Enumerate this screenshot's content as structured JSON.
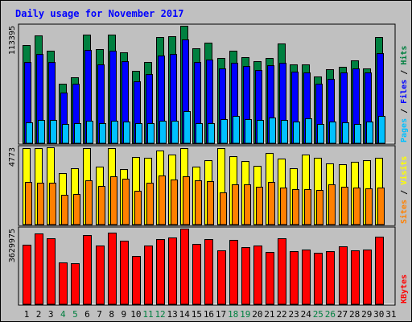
{
  "chart_data": {
    "type": "bar",
    "title": "Daily usage for November 2017",
    "categories": [
      "1",
      "2",
      "3",
      "4",
      "5",
      "6",
      "7",
      "8",
      "9",
      "10",
      "11",
      "12",
      "13",
      "14",
      "15",
      "16",
      "17",
      "18",
      "19",
      "20",
      "21",
      "22",
      "23",
      "24",
      "25",
      "26",
      "27",
      "28",
      "29",
      "30",
      "31"
    ],
    "weekend_days": [
      "4",
      "5",
      "11",
      "12",
      "18",
      "19",
      "25",
      "26"
    ],
    "colors": {
      "title": "#0000ff",
      "background": "#c0c0c0",
      "plot": "#c0c0c0",
      "hits": "#008040",
      "files": "#0000ff",
      "pages": "#00c0ff",
      "visits": "#ffff00",
      "sites": "#ff8000",
      "kbytes": "#ff0000",
      "weekday_label": "#000000",
      "weekend_label": "#008040"
    },
    "panels": [
      {
        "id": "hits-panel",
        "ymax_label": "113395",
        "ymax": 113395,
        "legend": [
          {
            "text": "Pages",
            "color": "#00c0ff"
          },
          {
            "text": " / ",
            "color": "#000000"
          },
          {
            "text": "Files",
            "color": "#0000ff"
          },
          {
            "text": " / ",
            "color": "#000000"
          },
          {
            "text": "Hits",
            "color": "#008040"
          }
        ],
        "series": [
          {
            "name": "Hits",
            "values": [
              94400,
              104000,
              89200,
              57700,
              64000,
              104800,
              90500,
              104800,
              87600,
              69600,
              78500,
              102800,
              103400,
              113395,
              91800,
              97100,
              82600,
              89600,
              83200,
              79300,
              82000,
              96500,
              75800,
              75900,
              64500,
              71500,
              74000,
              80300,
              72300,
              102500,
              0
            ]
          },
          {
            "name": "Files",
            "values": [
              78200,
              86400,
              78100,
              49300,
              57100,
              90200,
              76300,
              89200,
              79000,
              59900,
              66600,
              84300,
              86500,
              100200,
              78600,
              80900,
              72000,
              77700,
              74400,
              70400,
              75300,
              78000,
              69300,
              68000,
              57200,
              62300,
              68200,
              72100,
              68400,
              86700,
              0
            ]
          },
          {
            "name": "Pages",
            "values": [
              20000,
              22500,
              22900,
              18800,
              19200,
              21800,
              19300,
              21700,
              21000,
              19400,
              19300,
              21400,
              21600,
              30700,
              19700,
              19400,
              23100,
              26300,
              23300,
              22400,
              24700,
              22400,
              20900,
              24300,
              19000,
              20700,
              20500,
              18500,
              20600,
              26500,
              0
            ]
          }
        ]
      },
      {
        "id": "visits-panel",
        "ymax_label": "4773",
        "ymax": 4773,
        "legend": [
          {
            "text": "Sites",
            "color": "#ff8000"
          },
          {
            "text": " / ",
            "color": "#000000"
          },
          {
            "text": "Visits",
            "color": "#ffff00"
          }
        ],
        "series": [
          {
            "name": "Visits",
            "values": [
              4740,
              4720,
              4760,
              3180,
              3480,
              4720,
              3570,
              4740,
              3410,
              4180,
              4140,
              4560,
              4310,
              4730,
              3600,
              3970,
              4730,
              4250,
              3930,
              3620,
              4410,
              4080,
              3480,
              4350,
              4120,
              3780,
              3730,
              3880,
              3980,
              4150,
              0
            ]
          },
          {
            "name": "Sites",
            "values": [
              2620,
              2590,
              2610,
              1830,
              1890,
              2720,
              2380,
              2980,
              2820,
              2080,
              2600,
              3010,
              2780,
              2990,
              2740,
              2680,
              1980,
              2470,
              2470,
              2320,
              2620,
              2300,
              2190,
              2170,
              2140,
              2490,
              2330,
              2290,
              2240,
              2290,
              0
            ]
          }
        ]
      },
      {
        "id": "kbytes-panel",
        "ymax_label": "3629975",
        "ymax": 3629975,
        "legend": [
          {
            "text": "KBytes",
            "color": "#ff0000"
          }
        ],
        "series": [
          {
            "name": "KBytes",
            "values": [
              2840000,
              3400000,
              3170000,
              2000000,
              1970000,
              3320000,
              2820000,
              3430000,
              3060000,
              2320000,
              2820000,
              3120000,
              3200000,
              3629975,
              2880000,
              3110000,
              2570000,
              3100000,
              2760000,
              2830000,
              2520000,
              3180000,
              2540000,
              2620000,
              2480000,
              2550000,
              2790000,
              2570000,
              2620000,
              3250000,
              0
            ]
          }
        ]
      }
    ]
  }
}
